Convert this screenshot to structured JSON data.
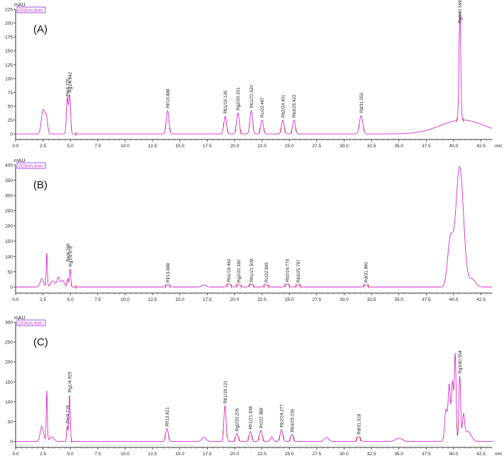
{
  "chart_data": [
    {
      "type": "line",
      "panel_label": "(A)",
      "ylabel": "mAU",
      "xlabel": "min",
      "legend": "203nm,4nm",
      "xlim": [
        0,
        43.5
      ],
      "ylim": [
        -10,
        225
      ],
      "x_ticks": [
        "0.0",
        "2.5",
        "5.0",
        "7.5",
        "10.0",
        "12.5",
        "15.0",
        "17.5",
        "20.0",
        "22.5",
        "25.0",
        "27.5",
        "30.0",
        "32.5",
        "35.0",
        "37.5",
        "40.0",
        "42.5"
      ],
      "y_ticks": [
        "0",
        "25",
        "50",
        "75",
        "100",
        "125",
        "150",
        "175",
        "200",
        "225"
      ],
      "peaks": [
        {
          "x": 2.5,
          "y": 42,
          "w": 0.15
        },
        {
          "x": 2.8,
          "y": 30,
          "w": 0.12
        },
        {
          "x": 4.72,
          "y": 65,
          "w": 0.08
        },
        {
          "x": 4.94,
          "y": 70,
          "w": 0.08
        },
        {
          "x": 13.88,
          "y": 42,
          "w": 0.12
        },
        {
          "x": 19.14,
          "y": 32,
          "w": 0.12
        },
        {
          "x": 20.3,
          "y": 38,
          "w": 0.12
        },
        {
          "x": 21.52,
          "y": 42,
          "w": 0.12
        },
        {
          "x": 22.5,
          "y": 25,
          "w": 0.12
        },
        {
          "x": 24.4,
          "y": 25,
          "w": 0.12
        },
        {
          "x": 25.42,
          "y": 25,
          "w": 0.12
        },
        {
          "x": 31.55,
          "y": 33,
          "w": 0.15
        },
        {
          "x": 40.57,
          "y": 195,
          "w": 0.08
        },
        {
          "x": 40.8,
          "y": 25,
          "w": 2.0
        }
      ],
      "labels": [
        {
          "text": "Re/4.720",
          "x": 4.72,
          "y": 65
        },
        {
          "text": "Rg1/4.942",
          "x": 4.94,
          "y": 72
        },
        {
          "text": "Rf/13.888",
          "x": 13.88,
          "y": 44
        },
        {
          "text": "Rb1/19.136",
          "x": 19.14,
          "y": 34
        },
        {
          "text": "Rg2/20.301",
          "x": 20.3,
          "y": 40
        },
        {
          "text": "Rh1/21.520",
          "x": 21.52,
          "y": 44
        },
        {
          "text": "Rc/22.497",
          "x": 22.5,
          "y": 27
        },
        {
          "text": "Rb2/24.401",
          "x": 24.4,
          "y": 27
        },
        {
          "text": "Rb3/25.422",
          "x": 25.42,
          "y": 27
        },
        {
          "text": "Rd/31.550",
          "x": 31.55,
          "y": 35
        },
        {
          "text": "Rg3/40.569",
          "x": 40.57,
          "y": 197
        }
      ],
      "mark_x": [
        4.65,
        5.1,
        5.5,
        13.7,
        14.1,
        19.0,
        19.35,
        20.1,
        20.55,
        21.35,
        21.7,
        22.3,
        22.7,
        24.2,
        24.6,
        25.2,
        25.6,
        31.35,
        31.8,
        40.3,
        40.9
      ]
    },
    {
      "type": "line",
      "panel_label": "(B)",
      "ylabel": "mAU",
      "xlabel": "",
      "legend": "203nm,4nm",
      "xlim": [
        0,
        43.5
      ],
      "ylim": [
        -20,
        400
      ],
      "x_ticks": [
        "0.0",
        "2.5",
        "5.0",
        "7.5",
        "10.0",
        "12.5",
        "15.0",
        "17.5",
        "20.0",
        "22.5",
        "25.0",
        "27.5",
        "30.0",
        "32.5",
        "35.0",
        "37.5",
        "40.0",
        "42.5"
      ],
      "y_ticks": [
        "0",
        "50",
        "100",
        "150",
        "200",
        "250",
        "300",
        "350",
        "400"
      ],
      "peaks": [
        {
          "x": 2.4,
          "y": 28,
          "w": 0.15
        },
        {
          "x": 2.85,
          "y": 112,
          "w": 0.05
        },
        {
          "x": 3.4,
          "y": 20,
          "w": 0.2
        },
        {
          "x": 3.9,
          "y": 32,
          "w": 0.12
        },
        {
          "x": 4.3,
          "y": 22,
          "w": 0.15
        },
        {
          "x": 4.77,
          "y": 28,
          "w": 0.06
        },
        {
          "x": 4.98,
          "y": 60,
          "w": 0.06
        },
        {
          "x": 13.9,
          "y": 8,
          "w": 0.15
        },
        {
          "x": 17.2,
          "y": 6,
          "w": 0.2
        },
        {
          "x": 19.46,
          "y": 10,
          "w": 0.15
        },
        {
          "x": 20.36,
          "y": 8,
          "w": 0.15
        },
        {
          "x": 21.51,
          "y": 10,
          "w": 0.15
        },
        {
          "x": 22.87,
          "y": 8,
          "w": 0.15
        },
        {
          "x": 24.78,
          "y": 10,
          "w": 0.15
        },
        {
          "x": 25.8,
          "y": 8,
          "w": 0.15
        },
        {
          "x": 31.99,
          "y": 8,
          "w": 0.15
        },
        {
          "x": 39.7,
          "y": 150,
          "w": 0.25
        },
        {
          "x": 40.55,
          "y": 395,
          "w": 0.35
        },
        {
          "x": 41.7,
          "y": 25,
          "w": 0.3
        }
      ],
      "labels": [
        {
          "text": "Re/4.768",
          "x": 4.77,
          "y": 78
        },
        {
          "text": "Rg1/4.978",
          "x": 4.98,
          "y": 62
        },
        {
          "text": "Rf/13.888",
          "x": 13.9,
          "y": 10
        },
        {
          "text": "Rb1/19.462",
          "x": 19.46,
          "y": 12
        },
        {
          "text": "Rg2/20.360",
          "x": 20.36,
          "y": 10
        },
        {
          "text": "Rh1/21.509",
          "x": 21.51,
          "y": 12
        },
        {
          "text": "Rc/22.865",
          "x": 22.87,
          "y": 10
        },
        {
          "text": "Rb2/24.776",
          "x": 24.78,
          "y": 12
        },
        {
          "text": "Rb3/25.797",
          "x": 25.8,
          "y": 10
        },
        {
          "text": "Rd/31.990",
          "x": 31.99,
          "y": 10
        }
      ],
      "mark_x": [
        4.7,
        5.1,
        5.5,
        13.7,
        14.1,
        19.3,
        19.7,
        20.2,
        20.6,
        21.35,
        21.75,
        22.7,
        23.1,
        24.6,
        25.0,
        25.6,
        26.0,
        31.8,
        32.2
      ]
    },
    {
      "type": "line",
      "panel_label": "(C)",
      "ylabel": "mAU",
      "xlabel": "min",
      "legend": "203nm,4nm",
      "xlim": [
        0,
        43.5
      ],
      "ylim": [
        -15,
        300
      ],
      "x_ticks": [
        "0.0",
        "2.5",
        "5.0",
        "7.5",
        "10.0",
        "12.5",
        "15.0",
        "17.5",
        "20.0",
        "22.5",
        "25.0",
        "27.5",
        "30.0",
        "32.5",
        "35.0",
        "37.5",
        "40.0",
        "42.5"
      ],
      "y_ticks": [
        "0",
        "50",
        "100",
        "150",
        "200",
        "250",
        "300"
      ],
      "peaks": [
        {
          "x": 2.4,
          "y": 38,
          "w": 0.15
        },
        {
          "x": 2.85,
          "y": 128,
          "w": 0.05
        },
        {
          "x": 3.3,
          "y": 12,
          "w": 0.2
        },
        {
          "x": 4.72,
          "y": 40,
          "w": 0.06
        },
        {
          "x": 4.93,
          "y": 118,
          "w": 0.06
        },
        {
          "x": 13.82,
          "y": 32,
          "w": 0.12
        },
        {
          "x": 17.2,
          "y": 10,
          "w": 0.2
        },
        {
          "x": 19.12,
          "y": 90,
          "w": 0.1
        },
        {
          "x": 20.21,
          "y": 20,
          "w": 0.12
        },
        {
          "x": 21.44,
          "y": 25,
          "w": 0.12
        },
        {
          "x": 22.39,
          "y": 28,
          "w": 0.12
        },
        {
          "x": 23.4,
          "y": 12,
          "w": 0.12
        },
        {
          "x": 24.28,
          "y": 30,
          "w": 0.12
        },
        {
          "x": 25.24,
          "y": 18,
          "w": 0.12
        },
        {
          "x": 28.4,
          "y": 10,
          "w": 0.2
        },
        {
          "x": 31.32,
          "y": 12,
          "w": 0.15
        },
        {
          "x": 35.0,
          "y": 8,
          "w": 0.3
        },
        {
          "x": 39.3,
          "y": 80,
          "w": 0.12
        },
        {
          "x": 39.6,
          "y": 140,
          "w": 0.1
        },
        {
          "x": 39.9,
          "y": 150,
          "w": 0.1
        },
        {
          "x": 40.15,
          "y": 215,
          "w": 0.08
        },
        {
          "x": 40.56,
          "y": 165,
          "w": 0.08
        },
        {
          "x": 40.9,
          "y": 60,
          "w": 0.1
        },
        {
          "x": 41.3,
          "y": 25,
          "w": 0.3
        }
      ],
      "labels": [
        {
          "text": "Re/4.719",
          "x": 4.72,
          "y": 42
        },
        {
          "text": "Rg1/4.925",
          "x": 4.93,
          "y": 120
        },
        {
          "text": "Rf/13.821",
          "x": 13.82,
          "y": 34
        },
        {
          "text": "Rb1/19.121",
          "x": 19.12,
          "y": 92
        },
        {
          "text": "Rg2/20.205",
          "x": 20.21,
          "y": 22
        },
        {
          "text": "Rh1/21.438",
          "x": 21.44,
          "y": 27
        },
        {
          "text": "Rc/22.388",
          "x": 22.39,
          "y": 30
        },
        {
          "text": "Rb2/24.277",
          "x": 24.28,
          "y": 32
        },
        {
          "text": "Rb3/25.236",
          "x": 25.24,
          "y": 20
        },
        {
          "text": "Rd/31.318",
          "x": 31.32,
          "y": 14
        },
        {
          "text": "Rg3/40.554",
          "x": 40.56,
          "y": 167
        }
      ],
      "mark_x": [
        4.65,
        5.1,
        13.65,
        14.0,
        18.95,
        19.3,
        20.0,
        20.4,
        21.25,
        21.6,
        22.2,
        22.6,
        24.1,
        24.45,
        25.05,
        25.4,
        31.1,
        31.5,
        40.3
      ]
    }
  ]
}
